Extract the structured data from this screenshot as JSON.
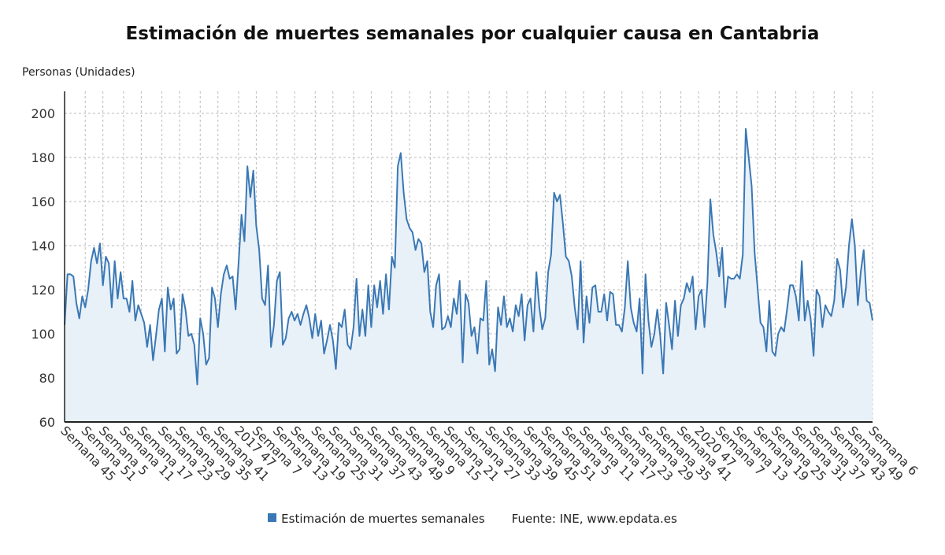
{
  "title": "Estimación de muertes semanales por cualquier causa en Cantabria",
  "ylabel": "Personas (Unidades)",
  "legend": {
    "series_label": "Estimación de muertes semanales",
    "source": "Fuente: INE, www.epdata.es"
  },
  "colors": {
    "line": "#3a78b5",
    "fill": "#e8f0f8",
    "grid": "#bbbbbb",
    "axis": "#222222"
  },
  "chart_data": {
    "type": "area",
    "grid": true,
    "ylim": [
      60,
      210
    ],
    "yticks": [
      60,
      80,
      100,
      120,
      140,
      160,
      180,
      200
    ],
    "xtick_labels": [
      "Semana 45",
      "Semana 51",
      "Semana 5",
      "Semana 11",
      "Semana 17",
      "Semana 23",
      "Semana 29",
      "Semana 35",
      "Semana 41",
      "2017 47",
      "Semana 7",
      "Semana 13",
      "Semana 19",
      "Semana 25",
      "Semana 31",
      "Semana 37",
      "Semana 43",
      "Semana 49",
      "Semana 9",
      "Semana 15",
      "Semana 21",
      "Semana 27",
      "Semana 33",
      "Semana 39",
      "Semana 45",
      "Semana 51",
      "Semana 5",
      "Semana 11",
      "Semana 17",
      "Semana 23",
      "Semana 29",
      "Semana 35",
      "Semana 41",
      "2020 47",
      "Semana 7",
      "Semana 13",
      "Semana 19",
      "Semana 25",
      "Semana 31",
      "Semana 37",
      "Semana 43",
      "Semana 49",
      "Semana 6"
    ],
    "series": [
      {
        "values": [
          104,
          127,
          127,
          126,
          114,
          107,
          117,
          112,
          120,
          133,
          139,
          132,
          141,
          122,
          135,
          132,
          112,
          133,
          116,
          128,
          116,
          116,
          110,
          124,
          106,
          113,
          109,
          105,
          94,
          104,
          88,
          99,
          111,
          116,
          92,
          121,
          111,
          116,
          91,
          93,
          118,
          111,
          99,
          100,
          95,
          77,
          107,
          100,
          86,
          89,
          121,
          116,
          103,
          118,
          127,
          131,
          125,
          126,
          111,
          132,
          154,
          142,
          176,
          162,
          174,
          149,
          138,
          116,
          113,
          131,
          94,
          104,
          124,
          128,
          95,
          98,
          107,
          110,
          106,
          109,
          104,
          109,
          113,
          107,
          98,
          109,
          99,
          106,
          91,
          97,
          104,
          97,
          84,
          105,
          103,
          111,
          95,
          93,
          103,
          125,
          99,
          111,
          99,
          122,
          103,
          122,
          112,
          124,
          109,
          127,
          111,
          135,
          130,
          176,
          182,
          164,
          152,
          148,
          146,
          138,
          143,
          141,
          128,
          133,
          110,
          103,
          122,
          127,
          102,
          103,
          108,
          103,
          116,
          109,
          124,
          87,
          118,
          114,
          99,
          103,
          91,
          107,
          106,
          124,
          86,
          93,
          83,
          112,
          104,
          117,
          103,
          107,
          101,
          113,
          108,
          118,
          97,
          113,
          116,
          101,
          128,
          112,
          102,
          107,
          128,
          136,
          164,
          160,
          163,
          150,
          135,
          133,
          126,
          112,
          102,
          133,
          96,
          117,
          105,
          121,
          122,
          110,
          110,
          118,
          106,
          119,
          118,
          104,
          104,
          101,
          112,
          133,
          112,
          105,
          101,
          116,
          82,
          127,
          106,
          94,
          100,
          111,
          99,
          82,
          114,
          104,
          93,
          115,
          99,
          113,
          116,
          123,
          119,
          126,
          102,
          117,
          120,
          103,
          123,
          161,
          145,
          137,
          126,
          139,
          112,
          126,
          125,
          125,
          127,
          125,
          136,
          193,
          180,
          167,
          137,
          121,
          105,
          103,
          92,
          115,
          92,
          90,
          100,
          103,
          101,
          111,
          122,
          122,
          117,
          106,
          133,
          106,
          115,
          107,
          90,
          120,
          117,
          103,
          113,
          110,
          108,
          115,
          134,
          129,
          112,
          121,
          140,
          152,
          140,
          113,
          128,
          138,
          115,
          114,
          106
        ]
      }
    ]
  }
}
